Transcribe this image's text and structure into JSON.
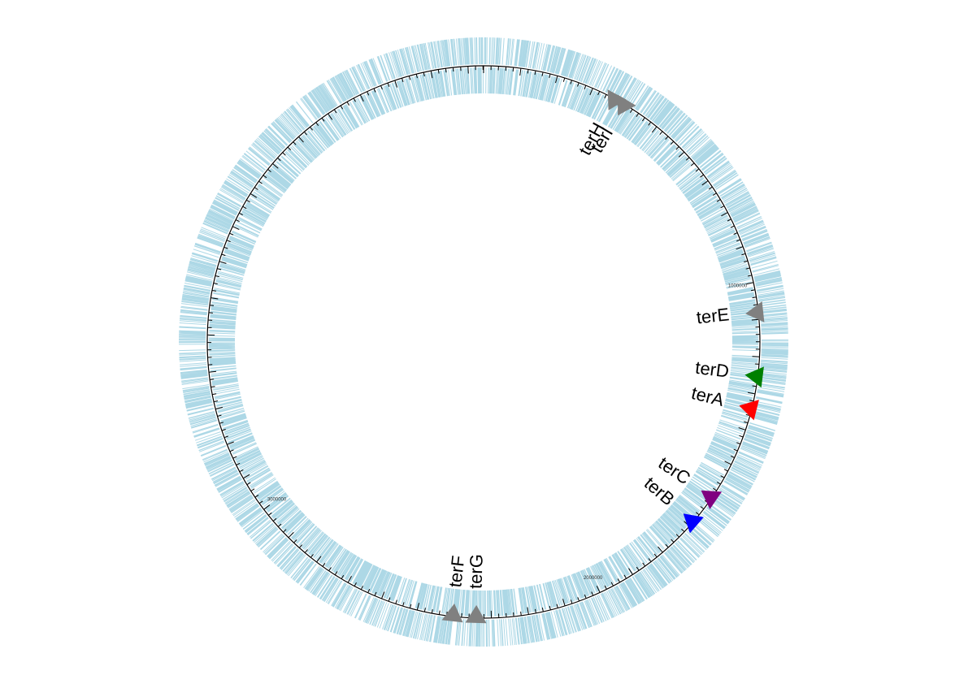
{
  "genome": {
    "length": 4641652,
    "gene_color": "#add8e6",
    "backbone_color": "#000000"
  },
  "axis_labels": [
    {
      "position": 1000000,
      "text": "1000000"
    },
    {
      "position": 2000000,
      "text": "2000000"
    },
    {
      "position": 3000000,
      "text": "3000000"
    }
  ],
  "ter_sites": [
    {
      "name": "terA",
      "position": 1341000,
      "color": "#ff0000"
    },
    {
      "name": "terD",
      "position": 1253000,
      "color": "#008000"
    },
    {
      "name": "terE",
      "position": 1081000,
      "color": "#808080"
    },
    {
      "name": "terI",
      "position": 395000,
      "color": "#808080"
    },
    {
      "name": "terH",
      "position": 365000,
      "color": "#808080"
    },
    {
      "name": "terC",
      "position": 1603000,
      "color": "#800080"
    },
    {
      "name": "terB",
      "position": 1685000,
      "color": "#0000ff"
    },
    {
      "name": "terF",
      "position": 2403000,
      "color": "#808080"
    },
    {
      "name": "terG",
      "position": 2341000,
      "color": "#808080"
    }
  ]
}
